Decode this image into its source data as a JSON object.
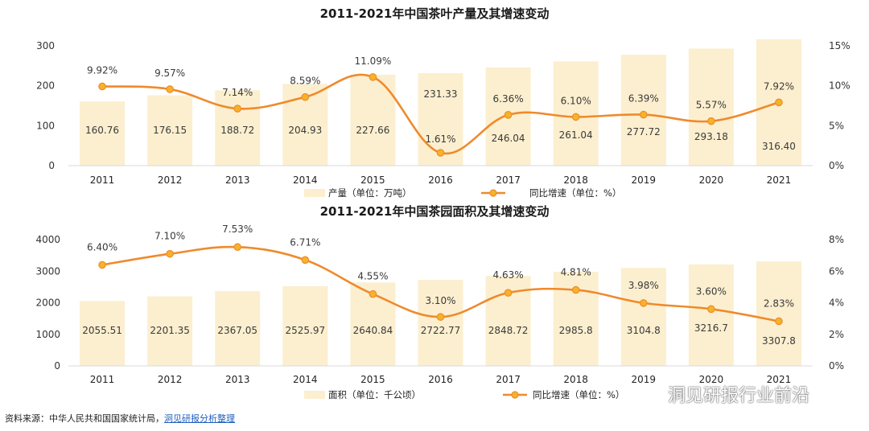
{
  "colors": {
    "bar": "#fcefcf",
    "line": "#ef8a2c",
    "marker": "#f6b327",
    "axis": "#d9d9d9"
  },
  "chart_data": [
    {
      "type": "bar+line",
      "title": "2011-2021年中国茶叶产量及其增速变动",
      "categories": [
        "2011",
        "2012",
        "2013",
        "2014",
        "2015",
        "2016",
        "2017",
        "2018",
        "2019",
        "2020",
        "2021"
      ],
      "series": [
        {
          "name": "产量（单位：万吨）",
          "kind": "bar",
          "axis": "left",
          "values": [
            160.76,
            176.15,
            188.72,
            204.93,
            227.66,
            231.33,
            246.04,
            261.04,
            277.72,
            293.18,
            316.4
          ],
          "labels": [
            "160.76",
            "176.15",
            "188.72",
            "204.93",
            "227.66",
            "231.33",
            "246.04",
            "261.04",
            "277.72",
            "293.18",
            "316.40"
          ]
        },
        {
          "name": "同比增速（单位：%）",
          "kind": "line",
          "axis": "right",
          "values": [
            9.92,
            9.57,
            7.14,
            8.59,
            11.09,
            1.61,
            6.36,
            6.1,
            6.39,
            5.57,
            7.92
          ],
          "labels": [
            "9.92%",
            "9.57%",
            "7.14%",
            "8.59%",
            "11.09%",
            "1.61%",
            "6.36%",
            "6.10%",
            "6.39%",
            "5.57%",
            "7.92%"
          ]
        }
      ],
      "y_left": {
        "min": 0,
        "max": 300,
        "ticks": [
          "0",
          "100",
          "200",
          "300"
        ]
      },
      "y_right": {
        "min": 0,
        "max": 15,
        "ticks": [
          "0%",
          "5%",
          "10%",
          "15%"
        ]
      },
      "legend": "bottom"
    },
    {
      "type": "bar+line",
      "title": "2011-2021年中国茶园面积及其增速变动",
      "categories": [
        "2011",
        "2012",
        "2013",
        "2014",
        "2015",
        "2016",
        "2017",
        "2018",
        "2019",
        "2020",
        "2021"
      ],
      "series": [
        {
          "name": "面积（单位：千公顷）",
          "kind": "bar",
          "axis": "left",
          "values": [
            2055.51,
            2201.35,
            2367.05,
            2525.97,
            2640.84,
            2722.77,
            2848.72,
            2985.8,
            3104.8,
            3216.7,
            3307.8
          ],
          "labels": [
            "2055.51",
            "2201.35",
            "2367.05",
            "2525.97",
            "2640.84",
            "2722.77",
            "2848.72",
            "2985.8",
            "3104.8",
            "3216.7",
            "3307.8"
          ]
        },
        {
          "name": "同比增速（单位：%）",
          "kind": "line",
          "axis": "right",
          "values": [
            6.4,
            7.1,
            7.53,
            6.71,
            4.55,
            3.1,
            4.63,
            4.81,
            3.98,
            3.6,
            2.83
          ],
          "labels": [
            "6.40%",
            "7.10%",
            "7.53%",
            "6.71%",
            "4.55%",
            "3.10%",
            "4.63%",
            "4.81%",
            "3.98%",
            "3.60%",
            "2.83%"
          ]
        }
      ],
      "y_left": {
        "min": 0,
        "max": 4000,
        "ticks": [
          "0",
          "1000",
          "2000",
          "3000",
          "4000"
        ]
      },
      "y_right": {
        "min": 0,
        "max": 8,
        "ticks": [
          "0%",
          "2%",
          "4%",
          "6%",
          "8%"
        ]
      },
      "legend": "bottom"
    }
  ],
  "footer": {
    "source_prefix": "资料来源：中华人民共和国国家统计局，",
    "source_link": "洞见研报分析整理"
  },
  "brand": {
    "name": "洞见研报行业前沿"
  }
}
